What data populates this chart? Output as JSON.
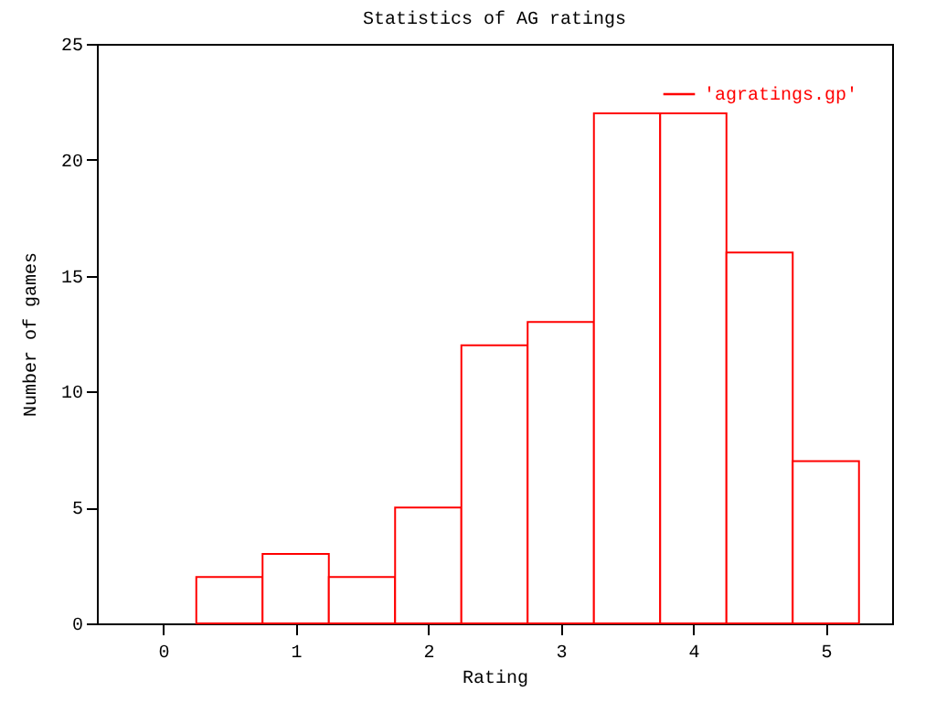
{
  "chart_data": {
    "type": "histogram",
    "title": "Statistics of AG ratings",
    "xlabel": "Rating",
    "ylabel": "Number of games",
    "bins": [
      0.25,
      0.75,
      1.25,
      1.75,
      2.25,
      2.75,
      3.25,
      3.75,
      4.25,
      4.75,
      5.25
    ],
    "series": [
      {
        "name": "'agratings.gp'",
        "color": "#ff0000",
        "values": [
          2,
          3,
          2,
          5,
          12,
          13,
          22,
          22,
          16,
          7
        ]
      }
    ],
    "xlim": [
      -0.5,
      5.5
    ],
    "xticks": [
      0,
      1,
      2,
      3,
      4,
      5
    ],
    "ylim": [
      0,
      25
    ],
    "yticks": [
      0,
      5,
      10,
      15,
      20,
      25
    ],
    "grid": false,
    "legend": "top right"
  }
}
